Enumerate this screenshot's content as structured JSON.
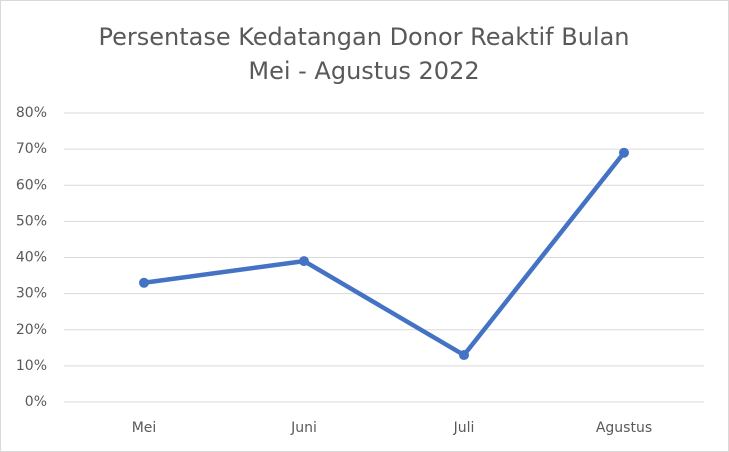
{
  "chart_data": {
    "type": "line",
    "title": [
      "Persentase Kedatangan Donor Reaktif Bulan",
      "Mei - Agustus 2022"
    ],
    "categories": [
      "Mei",
      "Juni",
      "Juli",
      "Agustus"
    ],
    "series": [
      {
        "name": "Persentase",
        "color": "#4472c4",
        "values": [
          33,
          39,
          13,
          69
        ]
      }
    ],
    "ylim": [
      0,
      80
    ],
    "yticks": [
      {
        "value": 0,
        "label": "0%"
      },
      {
        "value": 10,
        "label": "10%"
      },
      {
        "value": 20,
        "label": "20%"
      },
      {
        "value": 30,
        "label": "30%"
      },
      {
        "value": 40,
        "label": "40%"
      },
      {
        "value": 50,
        "label": "50%"
      },
      {
        "value": 60,
        "label": "60%"
      },
      {
        "value": 70,
        "label": "70%"
      },
      {
        "value": 80,
        "label": "80%"
      }
    ],
    "grid": true
  }
}
